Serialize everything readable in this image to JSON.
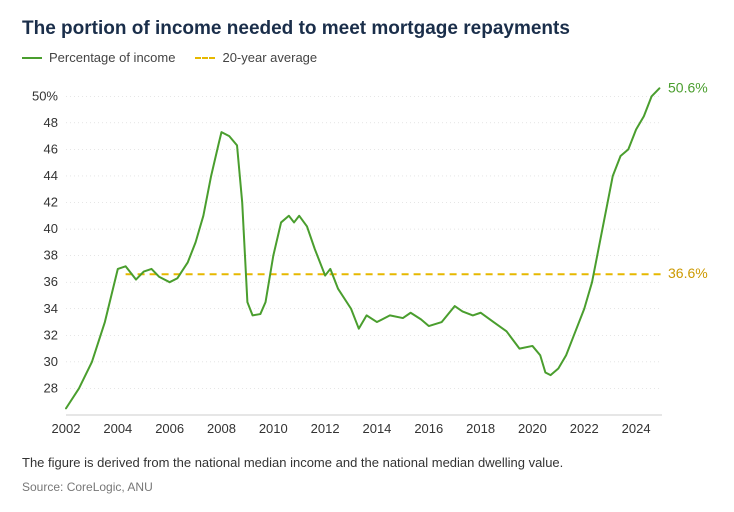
{
  "title": "The portion of income needed to meet mortgage repayments",
  "legend": {
    "series": "Percentage of income",
    "average": "20-year average"
  },
  "chart": {
    "type": "line",
    "colors": {
      "line": "#4a9e2e",
      "average": "#e6b800",
      "grid": "#cccccc",
      "axis": "#cccccc",
      "text": "#333333",
      "end_label_line": "#4a9e2e",
      "end_label_avg": "#cc9900",
      "background": "#ffffff"
    },
    "x": {
      "min": 2002,
      "max": 2025,
      "ticks": [
        2002,
        2004,
        2006,
        2008,
        2010,
        2012,
        2014,
        2016,
        2018,
        2020,
        2022,
        2024
      ]
    },
    "y": {
      "min": 26,
      "max": 51,
      "ticks": [
        28,
        30,
        32,
        34,
        36,
        38,
        40,
        42,
        44,
        46,
        48,
        50
      ],
      "suffix_at": 50,
      "suffix": "%"
    },
    "average_value": 36.6,
    "average_label": "36.6%",
    "end_value": 50.6,
    "end_label": "50.6%",
    "average_x_start": 2004.3,
    "line_width": 2,
    "series": [
      [
        2002.0,
        26.5
      ],
      [
        2002.5,
        28.0
      ],
      [
        2003.0,
        30.0
      ],
      [
        2003.5,
        33.0
      ],
      [
        2004.0,
        37.0
      ],
      [
        2004.3,
        37.2
      ],
      [
        2004.7,
        36.2
      ],
      [
        2005.0,
        36.8
      ],
      [
        2005.3,
        37.0
      ],
      [
        2005.6,
        36.4
      ],
      [
        2006.0,
        36.0
      ],
      [
        2006.3,
        36.3
      ],
      [
        2006.7,
        37.5
      ],
      [
        2007.0,
        39.0
      ],
      [
        2007.3,
        41.0
      ],
      [
        2007.6,
        44.0
      ],
      [
        2007.9,
        46.5
      ],
      [
        2008.0,
        47.3
      ],
      [
        2008.3,
        47.0
      ],
      [
        2008.6,
        46.3
      ],
      [
        2008.8,
        42.0
      ],
      [
        2009.0,
        34.5
      ],
      [
        2009.2,
        33.5
      ],
      [
        2009.5,
        33.6
      ],
      [
        2009.7,
        34.5
      ],
      [
        2010.0,
        38.0
      ],
      [
        2010.3,
        40.5
      ],
      [
        2010.6,
        41.0
      ],
      [
        2010.8,
        40.5
      ],
      [
        2011.0,
        41.0
      ],
      [
        2011.3,
        40.2
      ],
      [
        2011.6,
        38.5
      ],
      [
        2012.0,
        36.5
      ],
      [
        2012.2,
        37.0
      ],
      [
        2012.5,
        35.5
      ],
      [
        2013.0,
        34.0
      ],
      [
        2013.3,
        32.5
      ],
      [
        2013.6,
        33.5
      ],
      [
        2014.0,
        33.0
      ],
      [
        2014.5,
        33.5
      ],
      [
        2015.0,
        33.3
      ],
      [
        2015.3,
        33.7
      ],
      [
        2015.7,
        33.2
      ],
      [
        2016.0,
        32.7
      ],
      [
        2016.5,
        33.0
      ],
      [
        2017.0,
        34.2
      ],
      [
        2017.3,
        33.8
      ],
      [
        2017.7,
        33.5
      ],
      [
        2018.0,
        33.7
      ],
      [
        2018.5,
        33.0
      ],
      [
        2019.0,
        32.3
      ],
      [
        2019.5,
        31.0
      ],
      [
        2020.0,
        31.2
      ],
      [
        2020.3,
        30.5
      ],
      [
        2020.5,
        29.2
      ],
      [
        2020.7,
        29.0
      ],
      [
        2021.0,
        29.5
      ],
      [
        2021.3,
        30.5
      ],
      [
        2021.6,
        32.0
      ],
      [
        2022.0,
        34.0
      ],
      [
        2022.3,
        36.0
      ],
      [
        2022.6,
        39.0
      ],
      [
        2022.9,
        42.0
      ],
      [
        2023.1,
        44.0
      ],
      [
        2023.4,
        45.5
      ],
      [
        2023.7,
        46.0
      ],
      [
        2024.0,
        47.5
      ],
      [
        2024.3,
        48.5
      ],
      [
        2024.6,
        50.0
      ],
      [
        2024.9,
        50.6
      ]
    ]
  },
  "caption": "The figure is derived from the national median income and the national median dwelling value.",
  "source": "Source: CoreLogic, ANU"
}
